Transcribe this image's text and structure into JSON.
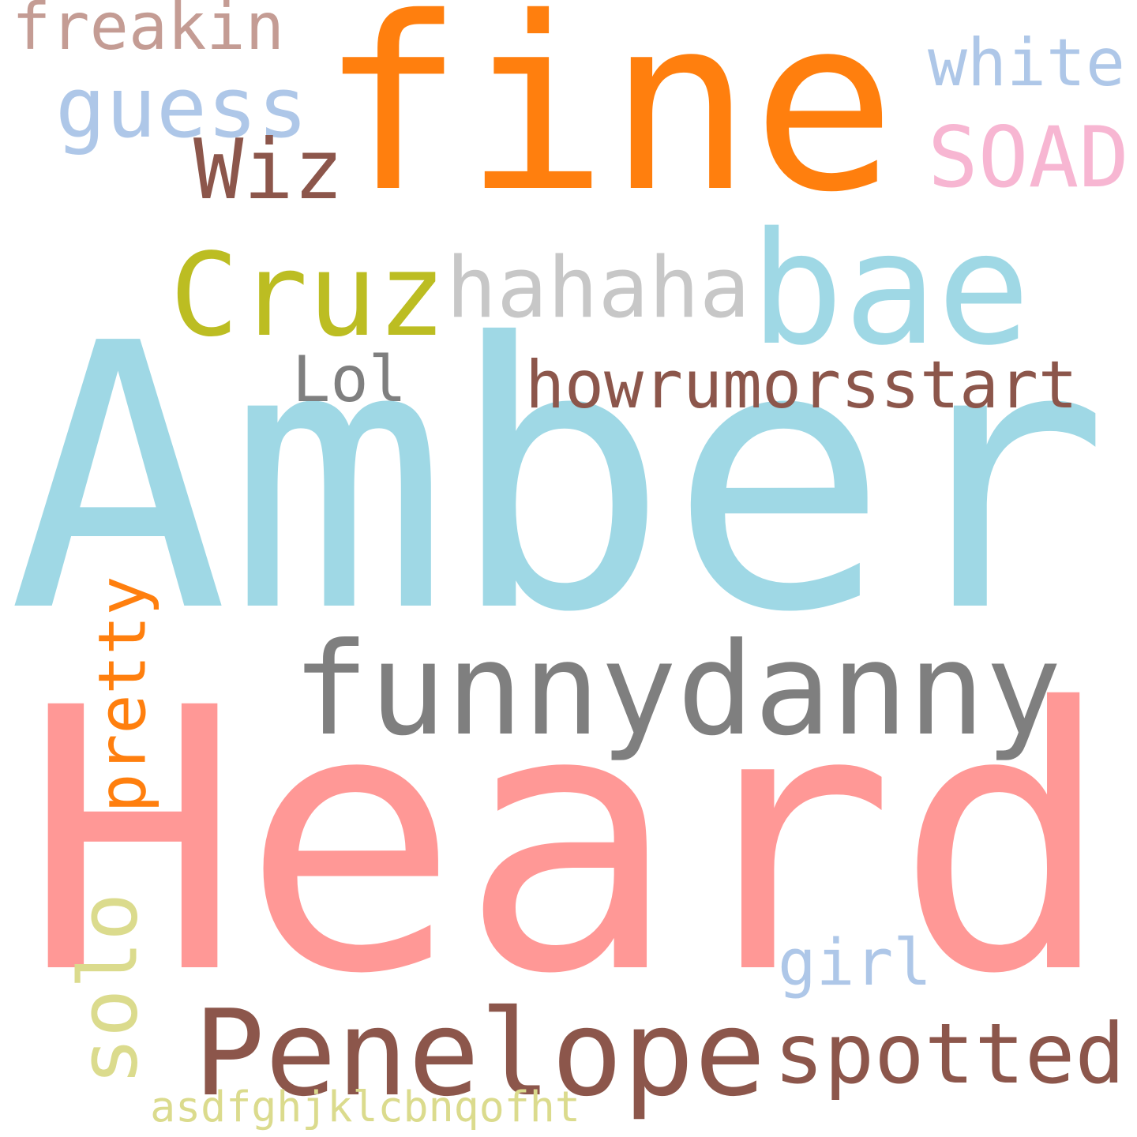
{
  "words": [
    {
      "text": "Amber",
      "color": "#9fd8e5"
    },
    {
      "text": "Heard",
      "color": "#ff9896"
    },
    {
      "text": "fine",
      "color": "#ff7f0e"
    },
    {
      "text": "funnydanny",
      "color": "#7f7f7f"
    },
    {
      "text": "Penelope",
      "color": "#8c564b"
    },
    {
      "text": "bae",
      "color": "#9fd8e5"
    },
    {
      "text": "Cruz",
      "color": "#bcbd22"
    },
    {
      "text": "spotted",
      "color": "#8c564b"
    },
    {
      "text": "hahaha",
      "color": "#c7c7c7"
    },
    {
      "text": "howrumorsstart",
      "color": "#8c564b"
    },
    {
      "text": "guess",
      "color": "#aec7e8"
    },
    {
      "text": "SOAD",
      "color": "#f7b6d2"
    },
    {
      "text": "pretty",
      "color": "#ff7f0e"
    },
    {
      "text": "solo",
      "color": "#dbdb8d"
    },
    {
      "text": "Wiz",
      "color": "#8c564b"
    },
    {
      "text": "white",
      "color": "#aec7e8"
    },
    {
      "text": "freakin",
      "color": "#c49c94"
    },
    {
      "text": "girl",
      "color": "#aec7e8"
    },
    {
      "text": "Lol",
      "color": "#7f7f7f"
    },
    {
      "text": "asdfghjklcbnqofht",
      "color": "#dbdb8d"
    }
  ]
}
